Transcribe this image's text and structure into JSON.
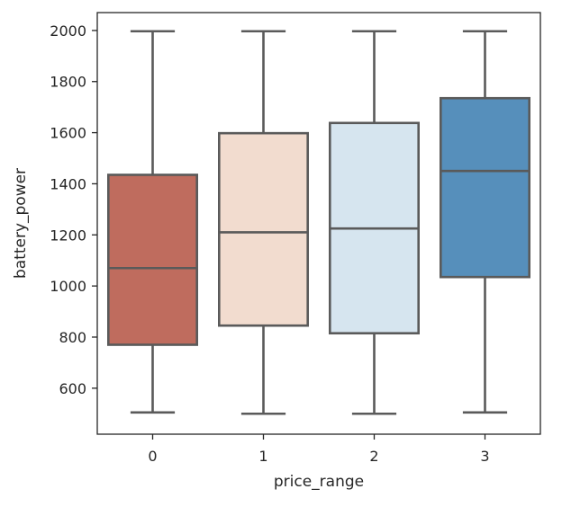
{
  "chart_data": {
    "type": "box",
    "xlabel": "price_range",
    "ylabel": "battery_power",
    "categories": [
      "0",
      "1",
      "2",
      "3"
    ],
    "ylim": [
      420,
      2070
    ],
    "yticks": [
      "600",
      "800",
      "1000",
      "1200",
      "1400",
      "1600",
      "1800",
      "2000"
    ],
    "grid": false,
    "boxes": [
      {
        "category": "0",
        "whisker_low": 505,
        "q1": 770,
        "median": 1070,
        "q3": 1435,
        "whisker_high": 1997,
        "color": "#bf6c5e"
      },
      {
        "category": "1",
        "whisker_low": 500,
        "q1": 845,
        "median": 1210,
        "q3": 1598,
        "whisker_high": 1997,
        "color": "#f2dccf"
      },
      {
        "category": "2",
        "whisker_low": 500,
        "q1": 815,
        "median": 1225,
        "q3": 1638,
        "whisker_high": 1997,
        "color": "#d6e5ef"
      },
      {
        "category": "3",
        "whisker_low": 505,
        "q1": 1035,
        "median": 1450,
        "q3": 1735,
        "whisker_high": 1997,
        "color": "#568fbb"
      }
    ],
    "line_color": "#5a5a5a"
  }
}
